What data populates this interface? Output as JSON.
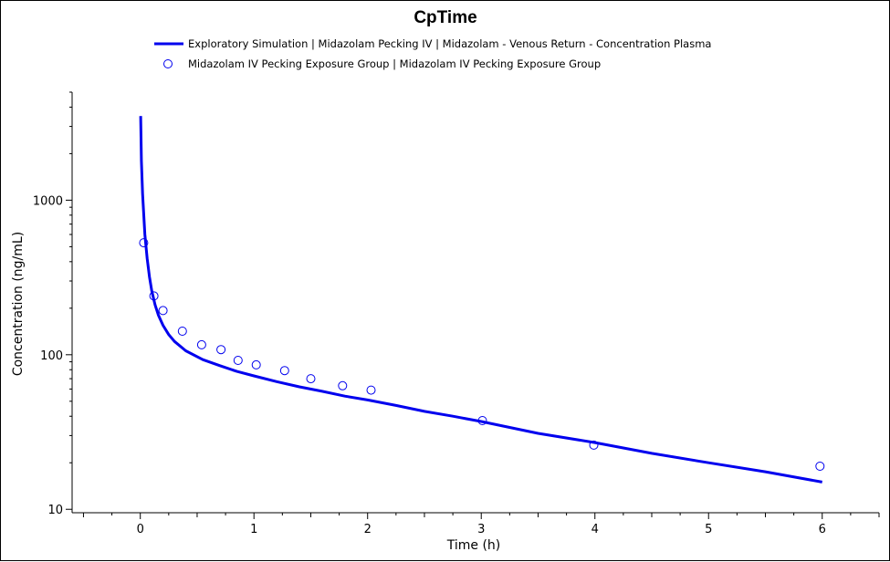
{
  "chart_data": {
    "type": "line",
    "title": "CpTime",
    "xlabel": "Time (h)",
    "ylabel": "Concentration (ng/mL)",
    "xlim": [
      -0.6,
      6.5
    ],
    "ylim": [
      9.5,
      5000
    ],
    "yscale": "log",
    "grid": false,
    "legend_position": "top",
    "x_ticks": [
      0,
      1,
      2,
      3,
      4,
      5,
      6
    ],
    "x_tick_labels": [
      "0",
      "1",
      "2",
      "3",
      "4",
      "5",
      "6"
    ],
    "y_ticks": [
      10,
      100,
      1000
    ],
    "y_tick_labels": [
      "10",
      "100",
      "1000"
    ],
    "series": [
      {
        "name": "Exploratory Simulation | Midazolam Pecking IV | Midazolam - Venous Return - Concentration Plasma",
        "style": "line",
        "color": "#0000ee",
        "x": [
          0.003,
          0.01,
          0.02,
          0.04,
          0.06,
          0.08,
          0.1,
          0.13,
          0.16,
          0.2,
          0.25,
          0.3,
          0.4,
          0.55,
          0.7,
          0.85,
          1.0,
          1.2,
          1.4,
          1.6,
          1.8,
          2.0,
          2.25,
          2.5,
          2.75,
          3.0,
          3.5,
          4.0,
          4.5,
          5.0,
          5.5,
          6.0
        ],
        "y": [
          3500,
          1800,
          1100,
          600,
          420,
          320,
          260,
          210,
          180,
          155,
          135,
          122,
          106,
          93,
          85,
          78,
          73,
          67,
          62,
          58,
          54,
          51,
          47,
          43,
          40,
          37,
          31,
          27,
          23,
          20,
          17.5,
          15
        ]
      },
      {
        "name": "Midazolam IV Pecking Exposure Group | Midazolam IV Pecking Exposure Group",
        "style": "marker",
        "color": "#0000ee",
        "x": [
          0.03,
          0.12,
          0.2,
          0.37,
          0.54,
          0.71,
          0.86,
          1.02,
          1.27,
          1.5,
          1.78,
          2.03,
          3.01,
          3.99,
          5.98
        ],
        "y": [
          530,
          240,
          193,
          142,
          116,
          108,
          92,
          86,
          79,
          70,
          63,
          59,
          37.5,
          26,
          19
        ]
      }
    ]
  }
}
